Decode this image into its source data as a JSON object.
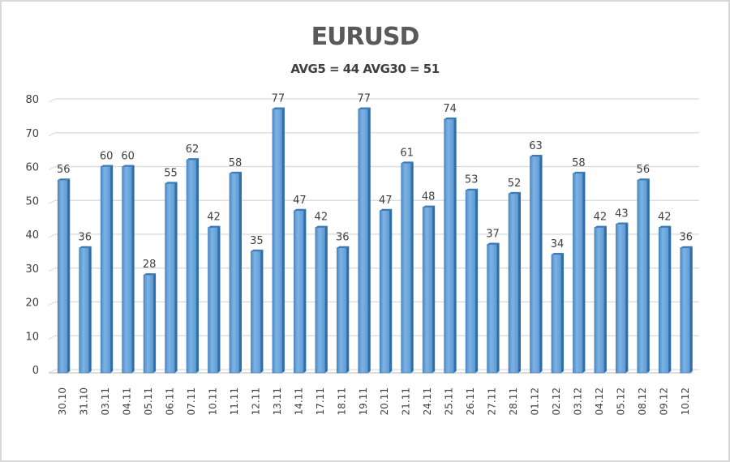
{
  "chart_data": {
    "type": "bar",
    "title": "EURUSD",
    "subtitle": "AVG5 = 44 AVG30 = 51",
    "xlabel": "",
    "ylabel": "",
    "ylim": [
      0,
      80
    ],
    "yticks": [
      0,
      10,
      20,
      30,
      40,
      50,
      60,
      70,
      80
    ],
    "grid": true,
    "legend": "none",
    "bar_color": "#5b9bd5",
    "categories": [
      "30.10",
      "31.10",
      "03.11",
      "04.11",
      "05.11",
      "06.11",
      "07.11",
      "10.11",
      "11.11",
      "12.11",
      "13.11",
      "14.11",
      "17.11",
      "18.11",
      "19.11",
      "20.11",
      "21.11",
      "24.11",
      "25.11",
      "26.11",
      "27.11",
      "28.11",
      "01.12",
      "02.12",
      "03.12",
      "04.12",
      "05.12",
      "08.12",
      "09.12",
      "10.12"
    ],
    "values": [
      56,
      36,
      60,
      60,
      28,
      55,
      62,
      42,
      58,
      35,
      77,
      47,
      42,
      36,
      77,
      47,
      61,
      48,
      74,
      53,
      37,
      52,
      63,
      34,
      58,
      42,
      43,
      56,
      42,
      36
    ]
  }
}
